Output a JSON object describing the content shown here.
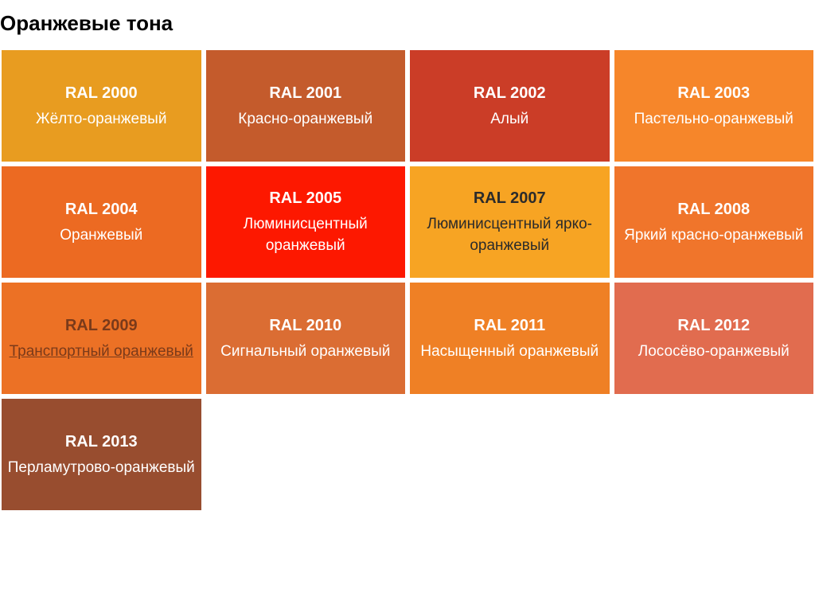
{
  "title": "Оранжевые тона",
  "swatches": [
    {
      "code": "RAL 2000",
      "name": "Жёлто-оранжевый",
      "bg": "#e89c20",
      "text": "light",
      "underline": false
    },
    {
      "code": "RAL 2001",
      "name": "Красно-оранжевый",
      "bg": "#c45b2c",
      "text": "light",
      "underline": false
    },
    {
      "code": "RAL 2002",
      "name": "Алый",
      "bg": "#cb3d27",
      "text": "light",
      "underline": false
    },
    {
      "code": "RAL 2003",
      "name": "Пастельно-оранжевый",
      "bg": "#f6862a",
      "text": "light",
      "underline": false
    },
    {
      "code": "RAL 2004",
      "name": "Оранжевый",
      "bg": "#ec6a22",
      "text": "light",
      "underline": false
    },
    {
      "code": "RAL 2005",
      "name": "Люминисцентный оранжевый",
      "bg": "#fd1800",
      "text": "light",
      "underline": false
    },
    {
      "code": "RAL 2007",
      "name": "Люминисцентный ярко-оранжевый",
      "bg": "#f7a423",
      "text": "dark",
      "underline": false
    },
    {
      "code": "RAL 2008",
      "name": "Яркий красно-оранжевый",
      "bg": "#f0752b",
      "text": "light",
      "underline": false
    },
    {
      "code": "RAL 2009",
      "name": "Транспортный оранжевый",
      "bg": "#ec7125",
      "text": "orange",
      "underline": true
    },
    {
      "code": "RAL 2010",
      "name": "Сигнальный оранжевый",
      "bg": "#db6d33",
      "text": "light",
      "underline": false
    },
    {
      "code": "RAL 2011",
      "name": "Насыщенный оранжевый",
      "bg": "#ef8025",
      "text": "light",
      "underline": false
    },
    {
      "code": "RAL 2012",
      "name": "Лососёво-оранжевый",
      "bg": "#e16c4f",
      "text": "light",
      "underline": false
    },
    {
      "code": "RAL 2013",
      "name": "Перламутрово-оранжевый",
      "bg": "#984d2f",
      "text": "light",
      "underline": false
    }
  ]
}
